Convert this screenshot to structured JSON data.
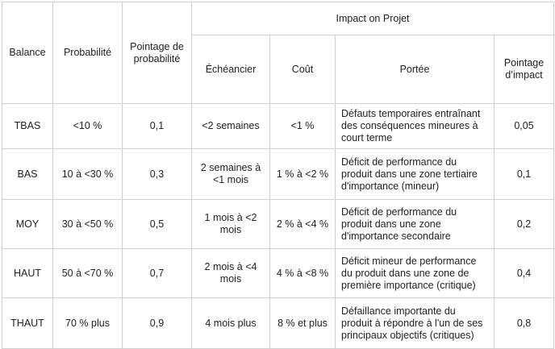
{
  "headers": {
    "balance": "Balance",
    "probabilite": "Probabilité",
    "pointage_probabilite": "Pointage de probabilité",
    "impact_group": "Impact on Projet",
    "echeancier": "Échéancier",
    "cout": "Coût",
    "portee": "Portée",
    "pointage_impact": "Pointage d’impact"
  },
  "rows": [
    {
      "balance": "TBAS",
      "probabilite": "<10 %",
      "pointage_probabilite": "0,1",
      "echeancier": "<2 semaines",
      "cout": "<1 %",
      "portee": "Défauts temporaires entraînant des conséquences mineures à court terme",
      "pointage_impact": "0,05"
    },
    {
      "balance": "BAS",
      "probabilite": "10 à <30 %",
      "pointage_probabilite": "0,3",
      "echeancier": "2 semaines à <1 mois",
      "cout": "1 % à <2 %",
      "portee": "Déficit de performance du produit dans une zone tertiaire d'importance (mineur)",
      "pointage_impact": "0,1"
    },
    {
      "balance": "MOY",
      "probabilite": "30 à <50 %",
      "pointage_probabilite": "0,5",
      "echeancier": "1 mois à <2 mois",
      "cout": "2 % à <4 %",
      "portee": "Déficit de performance du produit dans une zone d'importance secondaire",
      "pointage_impact": "0,2"
    },
    {
      "balance": "HAUT",
      "probabilite": "50 à <70 %",
      "pointage_probabilite": "0,7",
      "echeancier": "2 mois à <4 mois",
      "cout": "4 % à <8 %",
      "portee": "Déficit mineur de performance du produit dans une zone de première importance (critique)",
      "pointage_impact": "0,4"
    },
    {
      "balance": "THAUT",
      "probabilite": "70 % plus",
      "pointage_probabilite": "0,9",
      "echeancier": "4 mois plus",
      "cout": "8 % et plus",
      "portee": "Défaillance importante du produit à répondre à l'un de ses principaux objectifs (critiques)",
      "pointage_impact": "0,8"
    }
  ]
}
